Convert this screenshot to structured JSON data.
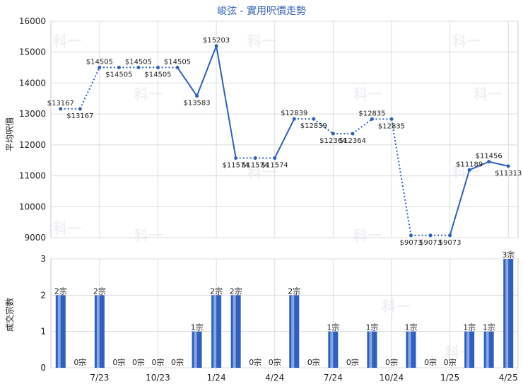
{
  "chart_data": [
    {
      "type": "line",
      "title": "峻弦 - 實用呎價走勢",
      "ylabel": "平均呎價",
      "ylim": [
        9000,
        16000
      ],
      "yticks": [
        9000,
        10000,
        11000,
        12000,
        13000,
        14000,
        15000,
        16000
      ],
      "series": [
        {
          "values": [
            13167,
            13167,
            14505,
            14505,
            14505,
            14505,
            14505,
            13583,
            15203,
            11574,
            11574,
            11574,
            12839,
            12839,
            12364,
            12364,
            12835,
            12835,
            9073,
            9073,
            9073,
            11189,
            11456,
            11313
          ],
          "labels": [
            "$13167",
            "$13167",
            "$14505",
            "$14505",
            "$14505",
            "$14505",
            "$14505",
            "$13583",
            "$15203",
            "$11574",
            "$11574",
            "$11574",
            "$12839",
            "$12839",
            "$12364",
            "$12364",
            "$12835",
            "$12835",
            "$9073",
            "$9073",
            "$9073",
            "$11189",
            "$11456",
            "$11313"
          ],
          "interpolated": [
            false,
            true,
            false,
            true,
            false,
            true,
            false,
            false,
            false,
            false,
            true,
            false,
            false,
            true,
            false,
            true,
            false,
            true,
            false,
            true,
            false,
            false,
            false,
            false
          ],
          "color": "#2f5fbf"
        }
      ],
      "grid": true
    },
    {
      "type": "bar",
      "ylabel": "成交宗數",
      "ylim": [
        0,
        3
      ],
      "yticks": [
        0,
        1,
        2,
        3
      ],
      "values": [
        2,
        0,
        2,
        0,
        0,
        0,
        0,
        1,
        2,
        2,
        0,
        0,
        2,
        0,
        1,
        0,
        1,
        0,
        1,
        0,
        0,
        1,
        1,
        3
      ],
      "labels": [
        "2宗",
        "0宗",
        "2宗",
        "0宗",
        "0宗",
        "0宗",
        "0宗",
        "1宗",
        "2宗",
        "2宗",
        "0宗",
        "0宗",
        "2宗",
        "0宗",
        "1宗",
        "0宗",
        "1宗",
        "0宗",
        "1宗",
        "0宗",
        "0宗",
        "1宗",
        "1宗",
        "3宗"
      ],
      "color": "#2f5fbf",
      "grid": true
    }
  ],
  "x_axis": {
    "ticks": [
      {
        "label": "7/23",
        "index": 2
      },
      {
        "label": "10/23",
        "index": 5
      },
      {
        "label": "1/24",
        "index": 8
      },
      {
        "label": "4/24",
        "index": 11
      },
      {
        "label": "7/24",
        "index": 14
      },
      {
        "label": "10/24",
        "index": 17
      },
      {
        "label": "1/25",
        "index": 20
      },
      {
        "label": "4/25",
        "index": 23
      }
    ]
  },
  "watermark": "科一"
}
